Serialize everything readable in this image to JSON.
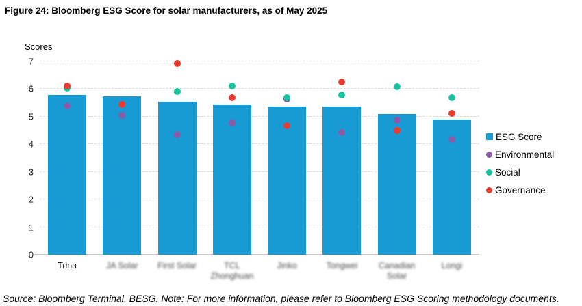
{
  "chart_data": {
    "type": "bar",
    "title": "Figure 24: Bloomberg ESG Score for solar manufacturers, as of May 2025",
    "xlabel": "",
    "ylabel": "Scores",
    "ylim": [
      0,
      7
    ],
    "yticks": [
      0,
      1,
      2,
      3,
      4,
      5,
      6,
      7
    ],
    "grid": true,
    "legend_position": "right",
    "categories": [
      "Trina",
      "JA Solar",
      "First Solar",
      "TCL Zhonghuan",
      "Jinko",
      "Tongwei",
      "Canadian Solar",
      "Longi"
    ],
    "categories_blurred": [
      false,
      true,
      true,
      true,
      true,
      true,
      true,
      true
    ],
    "series": [
      {
        "name": "ESG Score",
        "marker": "square",
        "color": "#189bd5",
        "values": [
          5.78,
          5.73,
          5.55,
          5.44,
          5.38,
          5.36,
          5.1,
          4.9
        ]
      },
      {
        "name": "Environmental",
        "marker": "circle",
        "color": "#8a5ba6",
        "values": [
          5.4,
          5.05,
          4.35,
          4.78,
          5.65,
          4.43,
          4.87,
          4.18
        ]
      },
      {
        "name": "Social",
        "marker": "circle",
        "color": "#14c39e",
        "values": [
          6.03,
          5.45,
          5.9,
          6.12,
          5.7,
          5.8,
          6.08,
          5.68
        ]
      },
      {
        "name": "Governance",
        "marker": "circle",
        "color": "#ea3b30",
        "values": [
          6.1,
          5.45,
          6.92,
          5.68,
          4.68,
          6.27,
          4.5,
          5.12
        ]
      }
    ]
  },
  "footer": {
    "source_note_prefix": "Source: Bloomberg Terminal, BESG. Note: For more information, please refer to Bloomberg ESG Scoring ",
    "methodology_link": "methodology",
    "source_note_suffix": " documents."
  }
}
